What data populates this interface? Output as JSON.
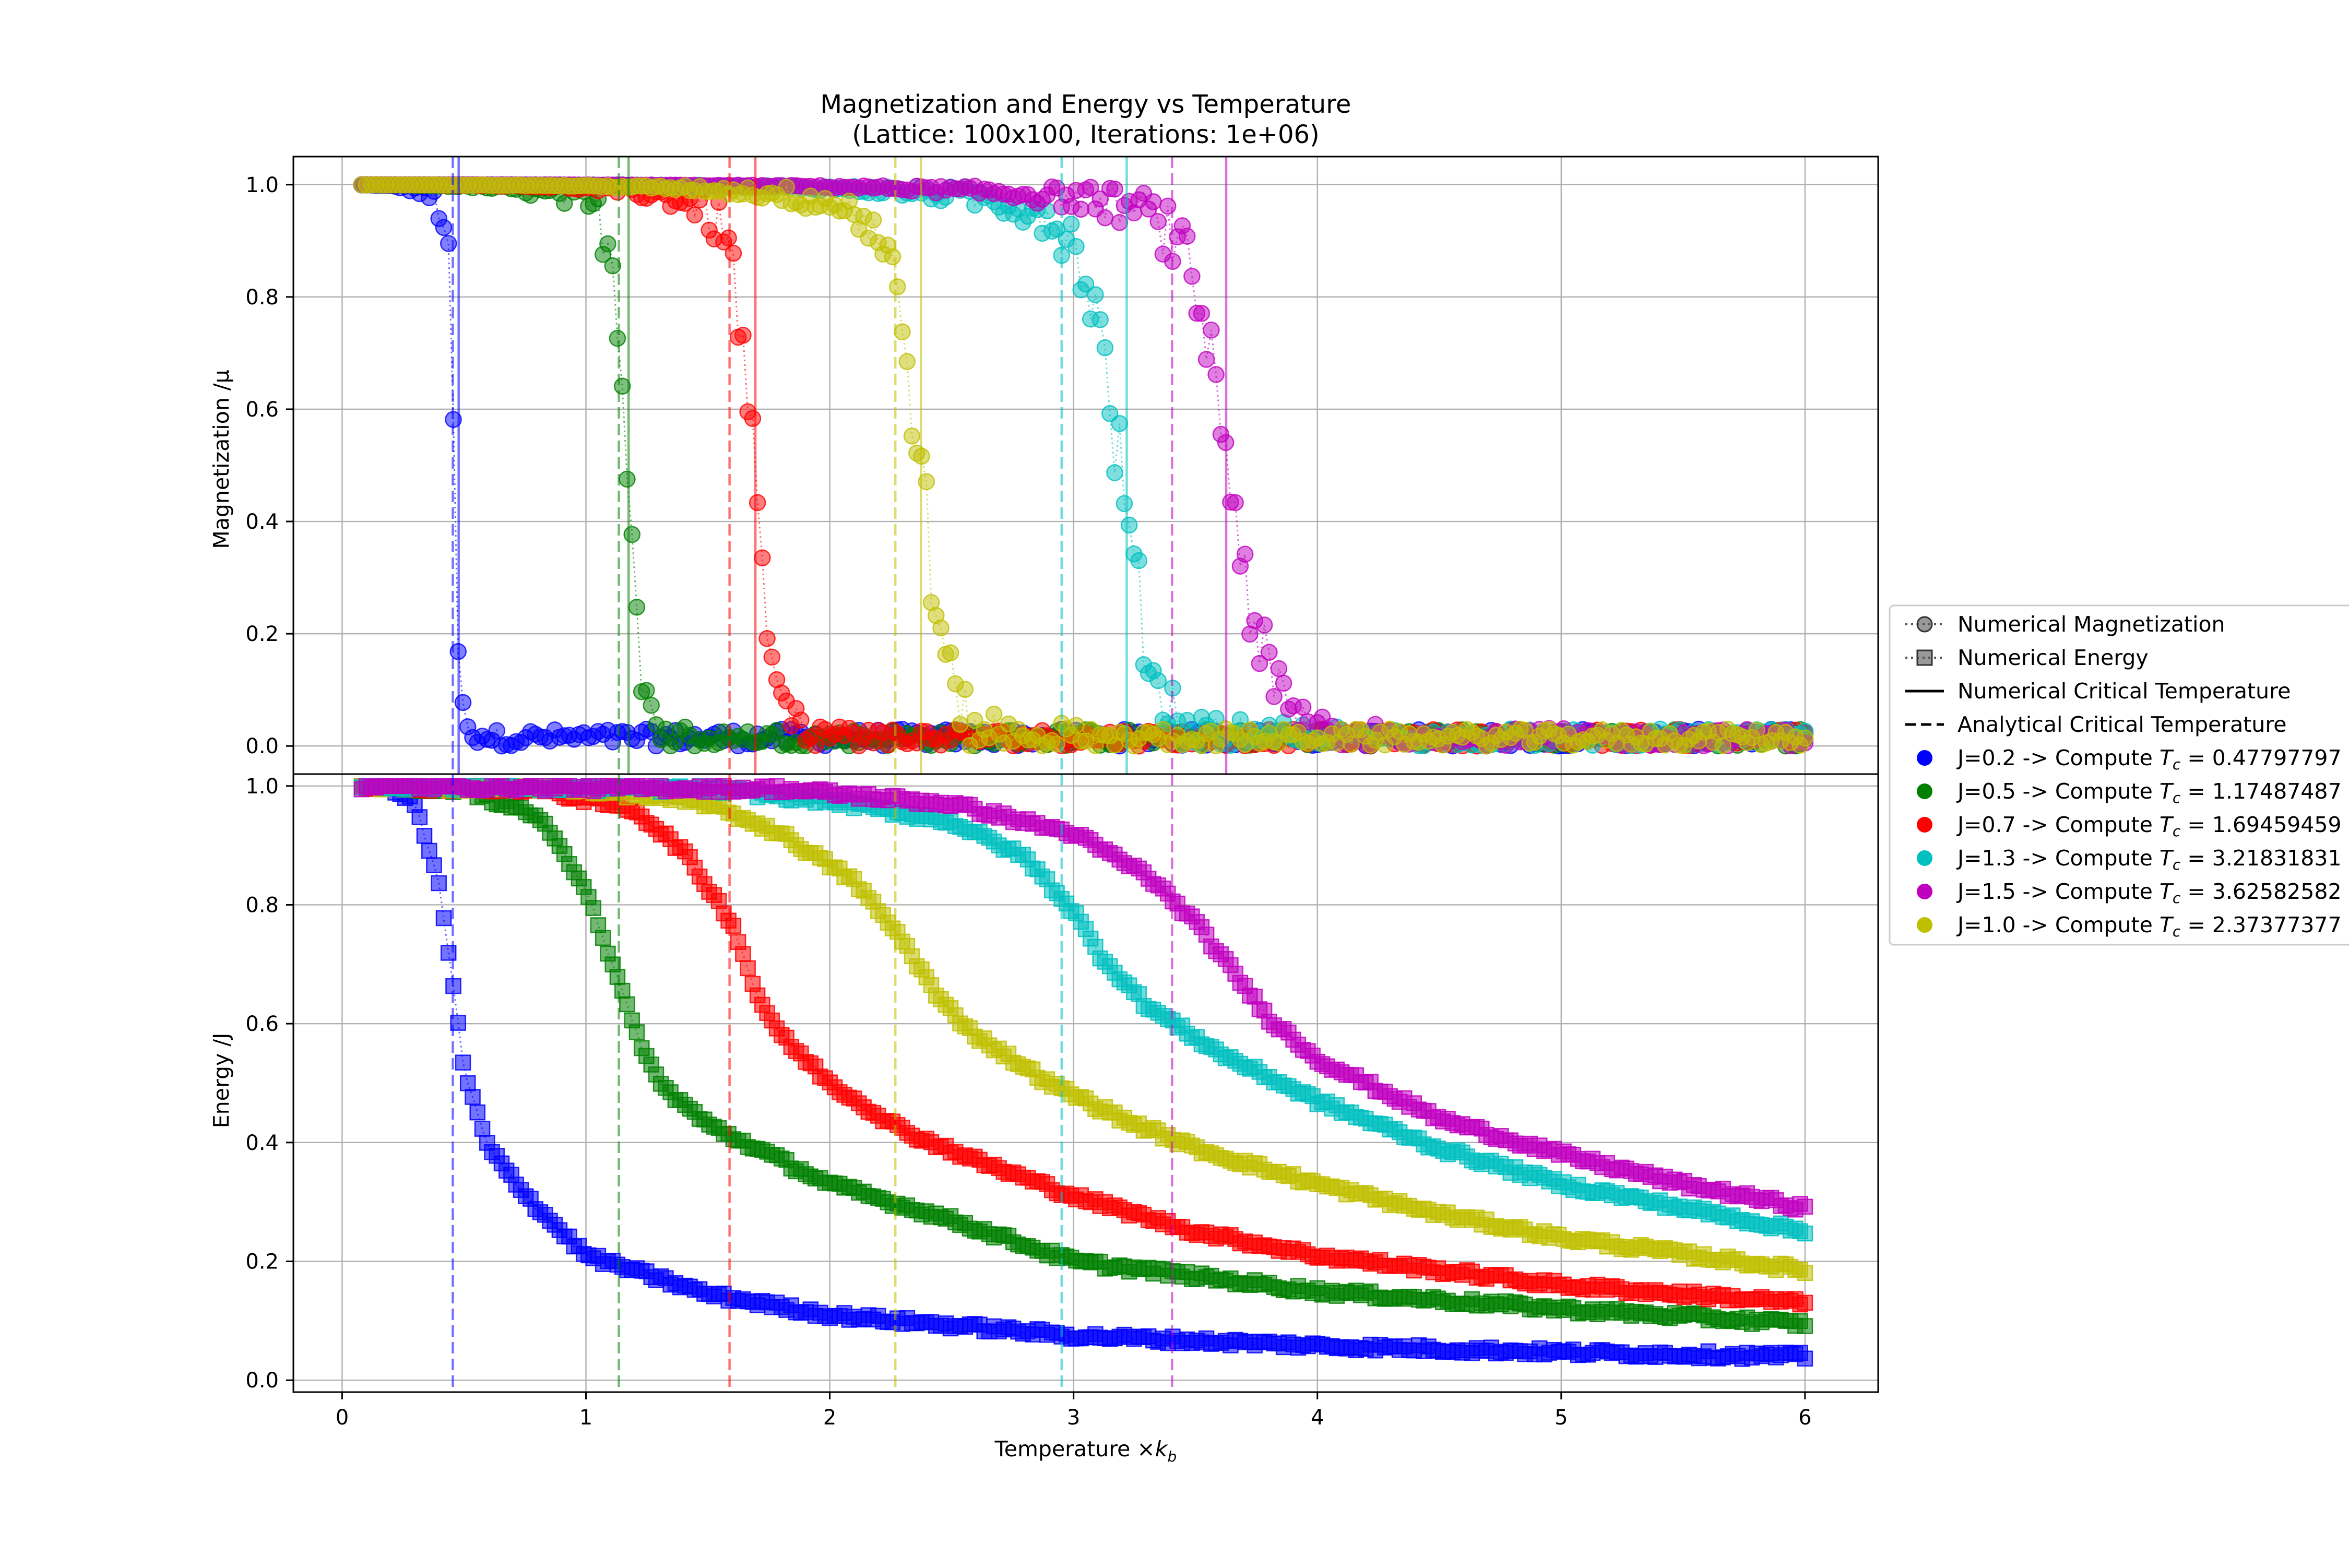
{
  "figure": {
    "title_line1": "Magnetization and Energy vs Temperature",
    "title_line2": "(Lattice: 100x100, Iterations: 1e+06)",
    "xlabel": "Temperature ×k_b"
  },
  "legend": {
    "numerical_magnetization": "Numerical Magnetization",
    "numerical_energy": "Numerical Energy",
    "numerical_tc": "Numerical Critical Temperature",
    "analytical_tc": "Analytical Critical Temperature"
  },
  "chart_data": [
    {
      "type": "scatter",
      "panel": "top",
      "ylabel": "Magnetization /μ",
      "xlim": [
        -0.2,
        6.3
      ],
      "ylim": [
        -0.05,
        1.05
      ],
      "xticks": [
        "0",
        "1",
        "2",
        "3",
        "4",
        "5",
        "6"
      ],
      "yticks": [
        "0.0",
        "0.2",
        "0.4",
        "0.6",
        "0.8",
        "1.0"
      ],
      "grid": true,
      "legend_position": "right, outside plot",
      "x_range": [
        0.08,
        6.0
      ],
      "marker": "circle",
      "series": [
        {
          "name": "J=0.2 -> Compute T_c = 0.47797797",
          "J": 0.2,
          "color": "#0000ff",
          "numerical_tc": 0.478,
          "analytical_tc": 0.454,
          "transition_x": 0.46,
          "width": 0.025,
          "noise_floor": 0.02
        },
        {
          "name": "J=0.5 -> Compute T_c = 1.17487487",
          "J": 0.5,
          "color": "#008000",
          "numerical_tc": 1.175,
          "analytical_tc": 1.135,
          "transition_x": 1.18,
          "width": 0.07,
          "noise_floor": 0.02
        },
        {
          "name": "J=0.7 -> Compute T_c = 1.69459459",
          "J": 0.7,
          "color": "#ff0000",
          "numerical_tc": 1.695,
          "analytical_tc": 1.589,
          "transition_x": 1.69,
          "width": 0.09,
          "noise_floor": 0.02
        },
        {
          "name": "J=1.3 -> Compute T_c = 3.21831831",
          "J": 1.3,
          "color": "#00bfbf",
          "numerical_tc": 3.218,
          "analytical_tc": 2.951,
          "transition_x": 3.2,
          "width": 0.16,
          "noise_floor": 0.02
        },
        {
          "name": "J=1.5 -> Compute T_c = 3.62582582",
          "J": 1.5,
          "color": "#bf00bf",
          "numerical_tc": 3.626,
          "analytical_tc": 3.404,
          "transition_x": 3.65,
          "width": 0.18,
          "noise_floor": 0.02
        },
        {
          "name": "J=1.0 -> Compute T_c = 2.37377377",
          "J": 1.0,
          "color": "#bfbf00",
          "numerical_tc": 2.374,
          "analytical_tc": 2.269,
          "transition_x": 2.38,
          "width": 0.13,
          "noise_floor": 0.02
        }
      ]
    },
    {
      "type": "scatter",
      "panel": "bottom",
      "ylabel": "Energy /J",
      "xlim": [
        -0.2,
        6.3
      ],
      "ylim": [
        -0.02,
        1.02
      ],
      "xticks": [
        "0",
        "1",
        "2",
        "3",
        "4",
        "5",
        "6"
      ],
      "yticks": [
        "0.0",
        "0.2",
        "0.4",
        "0.6",
        "0.8",
        "1.0"
      ],
      "grid": true,
      "x_range": [
        0.08,
        6.0
      ],
      "marker": "square",
      "series": [
        {
          "J": 0.2,
          "color": "#0000ff",
          "points": [
            [
              0.08,
              1.0
            ],
            [
              0.2,
              1.0
            ],
            [
              0.3,
              0.97
            ],
            [
              0.4,
              0.83
            ],
            [
              0.45,
              0.68
            ],
            [
              0.5,
              0.52
            ],
            [
              0.6,
              0.39
            ],
            [
              0.8,
              0.29
            ],
            [
              1.0,
              0.21
            ],
            [
              1.5,
              0.145
            ],
            [
              2.0,
              0.11
            ],
            [
              3.0,
              0.075
            ],
            [
              4.0,
              0.058
            ],
            [
              5.0,
              0.047
            ],
            [
              6.0,
              0.04
            ]
          ]
        },
        {
          "J": 0.5,
          "color": "#008000",
          "points": [
            [
              0.08,
              1.0
            ],
            [
              0.5,
              0.995
            ],
            [
              0.8,
              0.95
            ],
            [
              1.0,
              0.83
            ],
            [
              1.1,
              0.71
            ],
            [
              1.2,
              0.59
            ],
            [
              1.3,
              0.5
            ],
            [
              1.5,
              0.43
            ],
            [
              1.8,
              0.37
            ],
            [
              2.0,
              0.33
            ],
            [
              2.5,
              0.27
            ],
            [
              3.0,
              0.2
            ],
            [
              4.0,
              0.15
            ],
            [
              5.0,
              0.12
            ],
            [
              6.0,
              0.095
            ]
          ]
        },
        {
          "J": 0.7,
          "color": "#ff0000",
          "points": [
            [
              0.08,
              1.0
            ],
            [
              0.8,
              0.995
            ],
            [
              1.2,
              0.96
            ],
            [
              1.4,
              0.89
            ],
            [
              1.6,
              0.77
            ],
            [
              1.7,
              0.65
            ],
            [
              1.8,
              0.58
            ],
            [
              2.0,
              0.5
            ],
            [
              2.3,
              0.42
            ],
            [
              2.6,
              0.37
            ],
            [
              3.0,
              0.31
            ],
            [
              3.5,
              0.25
            ],
            [
              4.0,
              0.21
            ],
            [
              5.0,
              0.16
            ],
            [
              6.0,
              0.13
            ]
          ]
        },
        {
          "J": 1.0,
          "color": "#bfbf00",
          "points": [
            [
              0.08,
              1.0
            ],
            [
              1.0,
              0.995
            ],
            [
              1.5,
              0.97
            ],
            [
              1.8,
              0.92
            ],
            [
              2.1,
              0.84
            ],
            [
              2.3,
              0.74
            ],
            [
              2.45,
              0.64
            ],
            [
              2.6,
              0.58
            ],
            [
              2.9,
              0.5
            ],
            [
              3.2,
              0.44
            ],
            [
              3.5,
              0.39
            ],
            [
              4.0,
              0.33
            ],
            [
              4.5,
              0.28
            ],
            [
              5.0,
              0.24
            ],
            [
              6.0,
              0.185
            ]
          ]
        },
        {
          "J": 1.3,
          "color": "#00bfbf",
          "points": [
            [
              0.08,
              1.0
            ],
            [
              1.5,
              0.995
            ],
            [
              2.0,
              0.975
            ],
            [
              2.5,
              0.94
            ],
            [
              2.8,
              0.88
            ],
            [
              3.0,
              0.79
            ],
            [
              3.1,
              0.72
            ],
            [
              3.3,
              0.63
            ],
            [
              3.6,
              0.55
            ],
            [
              4.0,
              0.47
            ],
            [
              4.5,
              0.39
            ],
            [
              5.0,
              0.33
            ],
            [
              5.5,
              0.29
            ],
            [
              6.0,
              0.25
            ]
          ]
        },
        {
          "J": 1.5,
          "color": "#bf00bf",
          "points": [
            [
              0.08,
              1.0
            ],
            [
              1.8,
              0.995
            ],
            [
              2.5,
              0.97
            ],
            [
              3.0,
              0.92
            ],
            [
              3.3,
              0.85
            ],
            [
              3.5,
              0.77
            ],
            [
              3.65,
              0.69
            ],
            [
              3.8,
              0.61
            ],
            [
              4.0,
              0.54
            ],
            [
              4.5,
              0.44
            ],
            [
              5.0,
              0.38
            ],
            [
              5.5,
              0.33
            ],
            [
              6.0,
              0.29
            ]
          ]
        }
      ]
    }
  ]
}
